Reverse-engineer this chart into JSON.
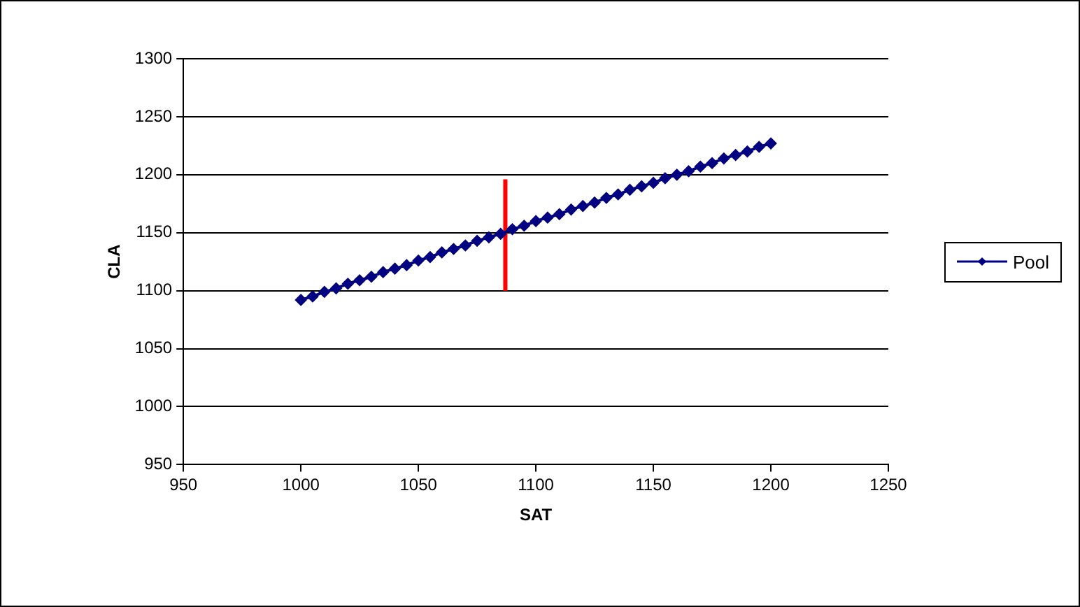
{
  "chart_data": {
    "type": "line",
    "xlabel": "SAT",
    "ylabel": "CLA",
    "xlim": [
      950,
      1250
    ],
    "xticks": [
      950,
      1000,
      1050,
      1100,
      1150,
      1200,
      1250
    ],
    "ylim": [
      950,
      1300
    ],
    "yticks": [
      950,
      1000,
      1050,
      1100,
      1150,
      1200,
      1250,
      1300
    ],
    "grid": "y",
    "legend": "right",
    "marker": "diamond",
    "line_style": "solid",
    "series": [
      {
        "name": "Pool",
        "color": "#000080",
        "x": [
          1000,
          1005,
          1010,
          1015,
          1020,
          1025,
          1030,
          1035,
          1040,
          1045,
          1050,
          1055,
          1060,
          1065,
          1070,
          1075,
          1080,
          1085,
          1090,
          1095,
          1100,
          1105,
          1110,
          1115,
          1120,
          1125,
          1130,
          1135,
          1140,
          1145,
          1150,
          1155,
          1160,
          1165,
          1170,
          1175,
          1180,
          1185,
          1190,
          1195,
          1200
        ],
        "values": [
          1092,
          1095,
          1099,
          1102,
          1106,
          1109,
          1112,
          1116,
          1119,
          1122,
          1126,
          1129,
          1133,
          1136,
          1139,
          1143,
          1146,
          1149,
          1153,
          1156,
          1160,
          1163,
          1166,
          1170,
          1173,
          1176,
          1180,
          1183,
          1187,
          1190,
          1193,
          1197,
          1200,
          1203,
          1207,
          1210,
          1214,
          1217,
          1220,
          1224,
          1227
        ]
      },
      {
        "color": "#ff0000",
        "marker": "none",
        "x": [
          1087,
          1087
        ],
        "values": [
          1100,
          1196
        ]
      }
    ]
  }
}
